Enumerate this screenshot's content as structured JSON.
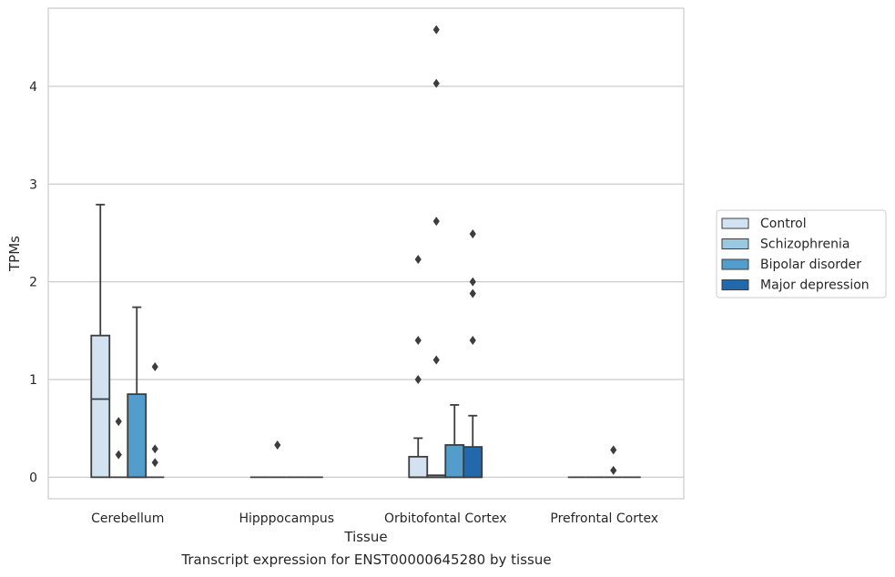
{
  "caption": "Transcript expression for ENST00000645280 by tissue",
  "chart_data": {
    "type": "box",
    "xlabel": "Tissue",
    "ylabel": "TPMs",
    "ylim": [
      -0.22,
      4.8
    ],
    "yticks": [
      0,
      1,
      2,
      3,
      4
    ],
    "grid": "horizontal",
    "legend_position": "right",
    "categories": [
      "Cerebellum",
      "Hipppocampus",
      "Orbitofontal Cortex",
      "Prefrontal Cortex"
    ],
    "series": [
      {
        "name": "Control",
        "color": "#d2e2f1"
      },
      {
        "name": "Schizophrenia",
        "color": "#9ac8e0"
      },
      {
        "name": "Bipolar disorder",
        "color": "#529dcc"
      },
      {
        "name": "Major depression",
        "color": "#2268ad"
      }
    ],
    "boxes": [
      {
        "category": "Cerebellum",
        "series": "Control",
        "q1": 0,
        "median": 0.8,
        "q3": 1.45,
        "whisker_low": 0,
        "whisker_high": 2.79,
        "outliers": []
      },
      {
        "category": "Cerebellum",
        "series": "Schizophrenia",
        "q1": 0,
        "median": 0,
        "q3": 0,
        "whisker_low": 0,
        "whisker_high": 0,
        "outliers": [
          0.57,
          0.23
        ]
      },
      {
        "category": "Cerebellum",
        "series": "Bipolar disorder",
        "q1": 0,
        "median": 0,
        "q3": 0.85,
        "whisker_low": 0,
        "whisker_high": 1.74,
        "outliers": []
      },
      {
        "category": "Cerebellum",
        "series": "Major depression",
        "q1": 0,
        "median": 0,
        "q3": 0,
        "whisker_low": 0,
        "whisker_high": 0,
        "outliers": [
          1.13,
          0.29,
          0.15
        ]
      },
      {
        "category": "Hipppocampus",
        "series": "Control",
        "q1": 0,
        "median": 0,
        "q3": 0,
        "whisker_low": 0,
        "whisker_high": 0,
        "outliers": []
      },
      {
        "category": "Hipppocampus",
        "series": "Schizophrenia",
        "q1": 0,
        "median": 0,
        "q3": 0,
        "whisker_low": 0,
        "whisker_high": 0,
        "outliers": [
          0.33
        ]
      },
      {
        "category": "Hipppocampus",
        "series": "Bipolar disorder",
        "q1": 0,
        "median": 0,
        "q3": 0,
        "whisker_low": 0,
        "whisker_high": 0,
        "outliers": []
      },
      {
        "category": "Hipppocampus",
        "series": "Major depression",
        "q1": 0,
        "median": 0,
        "q3": 0,
        "whisker_low": 0,
        "whisker_high": 0,
        "outliers": []
      },
      {
        "category": "Orbitofontal Cortex",
        "series": "Control",
        "q1": 0,
        "median": 0,
        "q3": 0.21,
        "whisker_low": 0,
        "whisker_high": 0.4,
        "outliers": [
          2.23,
          1.4,
          1.0
        ]
      },
      {
        "category": "Orbitofontal Cortex",
        "series": "Schizophrenia",
        "q1": 0,
        "median": 0,
        "q3": 0.02,
        "whisker_low": 0,
        "whisker_high": 0.02,
        "outliers": [
          4.58,
          4.03,
          2.62,
          1.2
        ]
      },
      {
        "category": "Orbitofontal Cortex",
        "series": "Bipolar disorder",
        "q1": 0,
        "median": 0,
        "q3": 0.33,
        "whisker_low": 0,
        "whisker_high": 0.74,
        "outliers": []
      },
      {
        "category": "Orbitofontal Cortex",
        "series": "Major depression",
        "q1": 0,
        "median": 0,
        "q3": 0.31,
        "whisker_low": 0,
        "whisker_high": 0.63,
        "outliers": [
          2.49,
          2.0,
          1.88,
          1.4
        ]
      },
      {
        "category": "Prefrontal Cortex",
        "series": "Control",
        "q1": 0,
        "median": 0,
        "q3": 0,
        "whisker_low": 0,
        "whisker_high": 0,
        "outliers": []
      },
      {
        "category": "Prefrontal Cortex",
        "series": "Schizophrenia",
        "q1": 0,
        "median": 0,
        "q3": 0,
        "whisker_low": 0,
        "whisker_high": 0,
        "outliers": []
      },
      {
        "category": "Prefrontal Cortex",
        "series": "Bipolar disorder",
        "q1": 0,
        "median": 0,
        "q3": 0,
        "whisker_low": 0,
        "whisker_high": 0,
        "outliers": [
          0.28,
          0.07
        ]
      },
      {
        "category": "Prefrontal Cortex",
        "series": "Major depression",
        "q1": 0,
        "median": 0,
        "q3": 0,
        "whisker_low": 0,
        "whisker_high": 0,
        "outliers": []
      }
    ]
  }
}
